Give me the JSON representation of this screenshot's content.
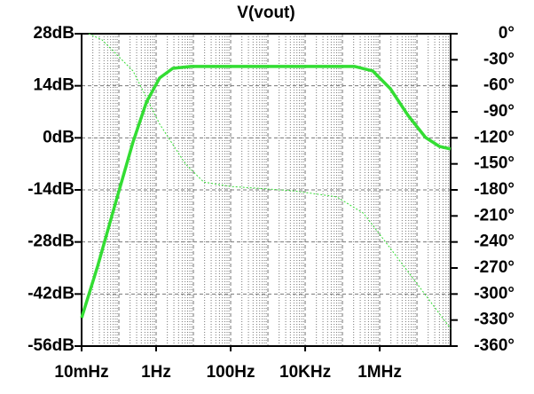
{
  "chart_data": {
    "type": "line",
    "title": "V(vout)",
    "title_color": "#22dd22",
    "x": [
      0.01,
      0.027,
      0.08,
      0.24,
      0.55,
      1.24,
      2.8,
      8.5,
      215000,
      650000,
      1930000,
      5800000,
      17000000,
      40000000,
      80000000
    ],
    "xlim": [
      0.01,
      80000000
    ],
    "xscale": "log",
    "xticks": [
      {
        "value": 0.01,
        "label": "10mHz"
      },
      {
        "value": 1,
        "label": "1Hz"
      },
      {
        "value": 100,
        "label": "100Hz"
      },
      {
        "value": 10000,
        "label": "10KHz"
      },
      {
        "value": 1000000,
        "label": "1MHz"
      }
    ],
    "ylim": [
      -56,
      28
    ],
    "yticks": [
      {
        "value": 28,
        "label": "28dB"
      },
      {
        "value": 14,
        "label": "14dB"
      },
      {
        "value": 0,
        "label": "0dB"
      },
      {
        "value": -14,
        "label": "-14dB"
      },
      {
        "value": -28,
        "label": "-28dB"
      },
      {
        "value": -42,
        "label": "-42dB"
      },
      {
        "value": -56,
        "label": "-56dB"
      }
    ],
    "y2lim": [
      -360,
      0
    ],
    "y2ticks": [
      {
        "value": 0,
        "label": "0°"
      },
      {
        "value": -30,
        "label": "-30°"
      },
      {
        "value": -60,
        "label": "-60°"
      },
      {
        "value": -90,
        "label": "-90°"
      },
      {
        "value": -120,
        "label": "-120°"
      },
      {
        "value": -150,
        "label": "-150°"
      },
      {
        "value": -180,
        "label": "-180°"
      },
      {
        "value": -210,
        "label": "-210°"
      },
      {
        "value": -240,
        "label": "-240°"
      },
      {
        "value": -270,
        "label": "-270°"
      },
      {
        "value": -300,
        "label": "-300°"
      },
      {
        "value": -330,
        "label": "-330°"
      },
      {
        "value": -360,
        "label": "-360°"
      }
    ],
    "grid": true,
    "series": [
      {
        "color": "#33dd33",
        "values": [
          -48.4,
          -34.5,
          -17.8,
          -1.1,
          9.6,
          16.1,
          18.7,
          19.2,
          19.2,
          18.0,
          13.2,
          6.0,
          0.1,
          -2.3,
          -3.0
        ]
      },
      {
        "color": "#33dd33",
        "axis": "y2",
        "dashed": true,
        "x": [
          0.0155,
          0.035,
          0.24,
          1.24,
          6.1,
          19,
          100,
          4700,
          70000,
          370000,
          1900000,
          10000000,
          80000000
        ],
        "values": [
          0,
          -7,
          -43,
          -104,
          -150,
          -171,
          -176,
          -181,
          -188,
          -207,
          -247,
          -288,
          -340
        ]
      }
    ]
  }
}
